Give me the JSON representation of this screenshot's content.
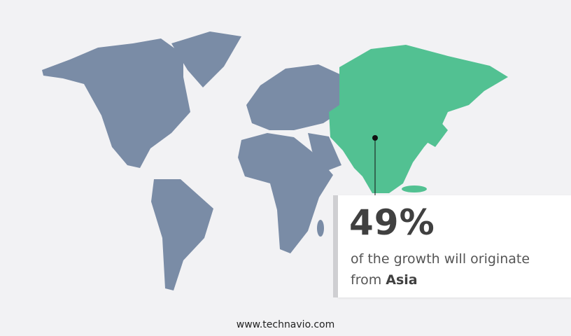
{
  "colors": {
    "background": "#f2f2f4",
    "land": "#7a8ca6",
    "highlight": "#52c192",
    "text": "#404040"
  },
  "map": {
    "highlighted_region": "Asia"
  },
  "callout": {
    "value": "49%",
    "text_prefix": "of the growth will originate",
    "text_from": "from",
    "region": "Asia"
  },
  "footer": {
    "url": "www.technavio.com"
  }
}
